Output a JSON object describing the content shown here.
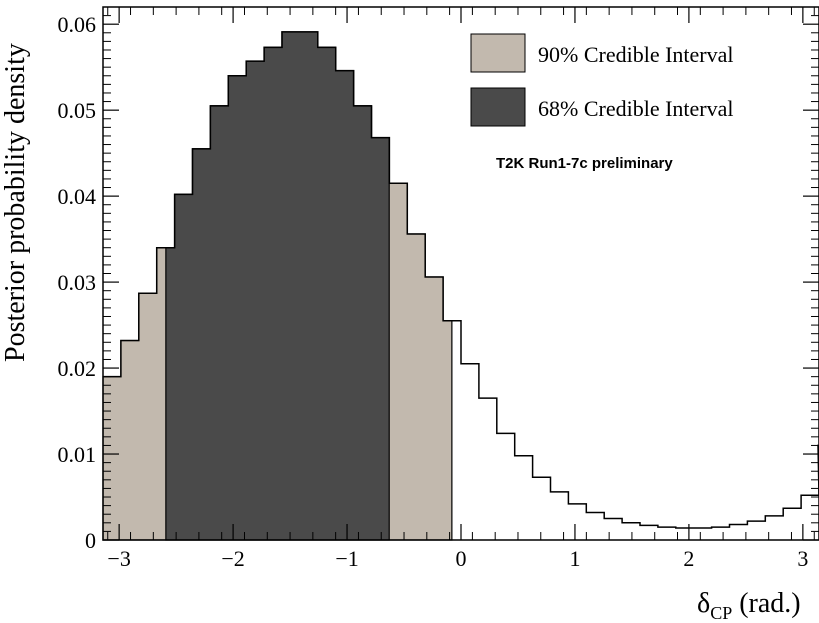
{
  "chart_data": {
    "type": "bar",
    "style": "step-histogram",
    "xlabel_main": "δ",
    "xlabel_sub": "CP",
    "xlabel_unit": " (rad.)",
    "ylabel": "Posterior probability density",
    "xlim": [
      -3.14159,
      3.14159
    ],
    "ylim": [
      0,
      0.062
    ],
    "x_ticks": [
      -3,
      -2,
      -1,
      0,
      1,
      2,
      3
    ],
    "x_tick_labels": [
      "−3",
      "−2",
      "−1",
      "0",
      "1",
      "2",
      "3"
    ],
    "y_ticks": [
      0,
      0.01,
      0.02,
      0.03,
      0.04,
      0.05,
      0.06
    ],
    "y_tick_labels": [
      "0",
      "0.01",
      "0.02",
      "0.03",
      "0.04",
      "0.05",
      "0.06"
    ],
    "bin_count": 40,
    "values": [
      0.019,
      0.0232,
      0.0287,
      0.034,
      0.0402,
      0.0455,
      0.0505,
      0.054,
      0.0557,
      0.0573,
      0.0591,
      0.0591,
      0.0573,
      0.0546,
      0.0505,
      0.0468,
      0.0415,
      0.0356,
      0.0306,
      0.0255,
      0.0205,
      0.0165,
      0.0124,
      0.0098,
      0.0073,
      0.0056,
      0.0042,
      0.0032,
      0.0025,
      0.002,
      0.0017,
      0.0015,
      0.0014,
      0.0014,
      0.0015,
      0.0018,
      0.0022,
      0.0028,
      0.0037,
      0.0052
    ],
    "trailing_value": 0.0111,
    "credible_68": [
      -2.59,
      -0.63
    ],
    "credible_90": [
      -3.14159,
      -0.08
    ],
    "colors": {
      "ci90": "#c2b9ae",
      "ci68": "#4a4a4a",
      "line": "#000000"
    },
    "legend": [
      {
        "label": "90% Credible Interval",
        "color": "#c2b9ae"
      },
      {
        "label": "68% Credible Interval",
        "color": "#4a4a4a"
      }
    ],
    "legend_position": "top-right",
    "annotation": "T2K Run1-7c preliminary",
    "grid": false
  }
}
